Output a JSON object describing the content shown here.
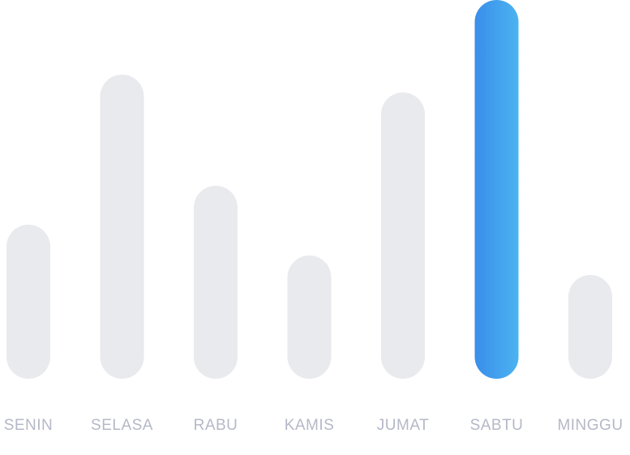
{
  "chart_data": {
    "type": "bar",
    "categories": [
      "SENIN",
      "SELASA",
      "RABU",
      "KAMIS",
      "JUMAT",
      "SABTU",
      "MINGGU"
    ],
    "values": [
      190,
      375,
      238,
      152,
      353,
      467,
      128
    ],
    "highlight_index": 5,
    "title": "",
    "xlabel": "",
    "ylabel": "",
    "ylim": [
      0,
      467
    ],
    "grid": false,
    "colors": {
      "bar": "#e9eaee",
      "highlight_start": "#3a8eea",
      "highlight_end": "#4bb3f1",
      "label": "#b5b8c7"
    }
  }
}
